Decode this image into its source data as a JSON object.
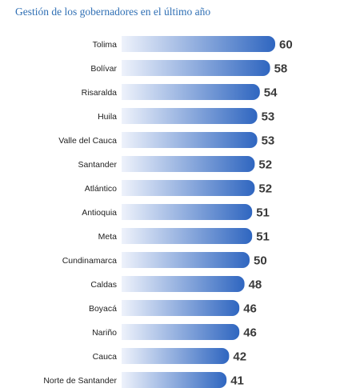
{
  "title": "Gestión de los gobernadores en el último año",
  "colors": {
    "title": "#2f6fb4",
    "bar_start": "#eef2fb",
    "bar_end": "#2f66c0",
    "value_text": "#3a3a3a"
  },
  "chart_data": {
    "type": "bar",
    "orientation": "horizontal",
    "title": "Gestión de los gobernadores en el último año",
    "xlabel": "",
    "ylabel": "",
    "grid": false,
    "legend": "none",
    "xlim": [
      0,
      60
    ],
    "categories": [
      "Tolima",
      "Bolívar",
      "Risaralda",
      "Huila",
      "Valle del Cauca",
      "Santander",
      "Atlántico",
      "Antioquia",
      "Meta",
      "Cundinamarca",
      "Caldas",
      "Boyacá",
      "Nariño",
      "Cauca",
      "Norte de Santander"
    ],
    "values": [
      60,
      58,
      54,
      53,
      53,
      52,
      52,
      51,
      51,
      50,
      48,
      46,
      46,
      42,
      41
    ]
  }
}
